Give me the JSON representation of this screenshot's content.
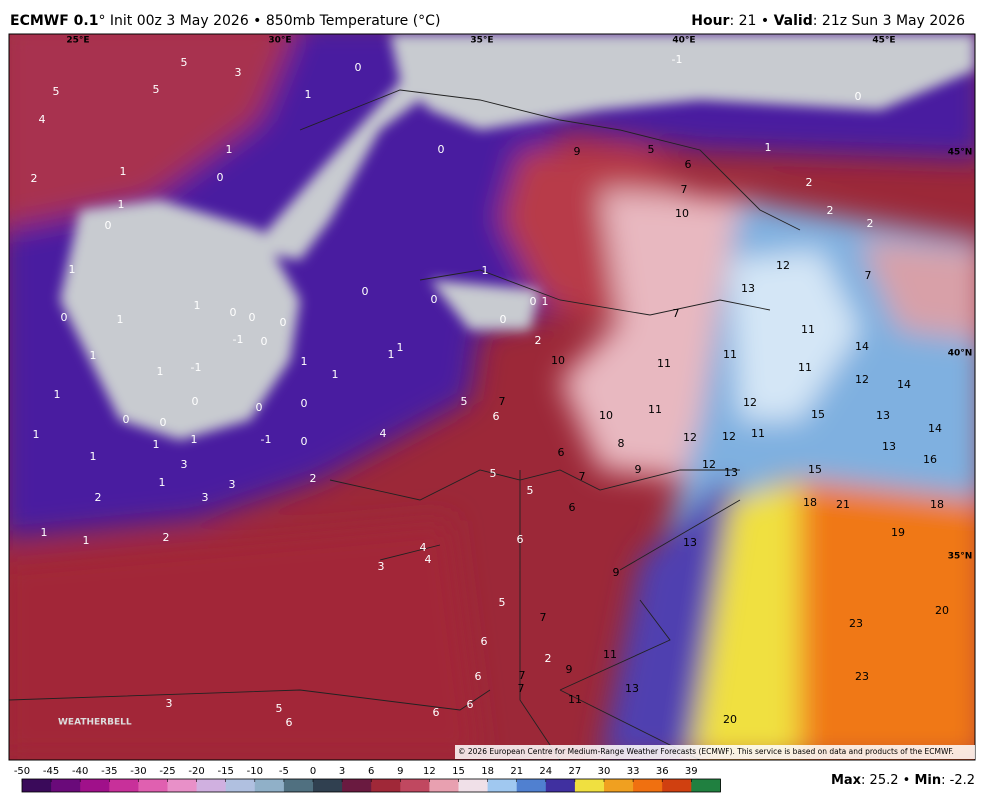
{
  "header": {
    "model": "ECMWF 0.1",
    "description": "° Init 00z 3 May 2026 • 850mb Temperature (°C)",
    "hour_label": "Hour",
    "hour": ": 21",
    "separator": " • ",
    "valid_label": "Valid",
    "valid": ": 21z Sun 3 May 2026"
  },
  "map": {
    "grid_labels": [
      "25°E",
      "30°E",
      "35°E",
      "40°E",
      "45°E",
      "45°N",
      "40°N",
      "35°N"
    ],
    "labels": [
      5,
      3,
      0,
      -1,
      5,
      5,
      1,
      0,
      4,
      9,
      5,
      6,
      1,
      1,
      0,
      2,
      1,
      0,
      7,
      2,
      1,
      10,
      2,
      2,
      0,
      1,
      1,
      12,
      7,
      0,
      0,
      0,
      1,
      13,
      1,
      0,
      1,
      0,
      0,
      0,
      7,
      0,
      -1,
      0,
      11,
      2,
      14,
      1,
      1,
      1,
      11,
      1,
      10,
      11,
      11,
      1,
      -1,
      1,
      12,
      14,
      1,
      0,
      0,
      0,
      5,
      7,
      12,
      11,
      15,
      0,
      0,
      10,
      6,
      13,
      1,
      4,
      1,
      1,
      -1,
      0,
      8,
      12,
      12,
      11,
      14,
      13,
      1,
      3,
      6,
      9,
      12,
      13,
      15,
      16,
      1,
      3,
      2,
      5,
      7,
      2,
      3,
      5,
      18,
      21,
      18,
      6,
      19,
      1,
      1,
      2,
      4,
      4,
      6,
      13,
      3,
      9,
      5,
      20,
      7,
      23,
      6,
      2,
      9,
      11,
      6,
      7,
      23,
      13,
      3,
      5,
      7,
      11,
      6,
      6,
      6,
      20
    ],
    "logo": "WEATHERBELL",
    "copyright": "© 2026 European Centre for Medium-Range Weather Forecasts (ECMWF). This service is based on data and products of the ECMWF."
  },
  "colorbar": {
    "ticks": [
      -50,
      -45,
      -40,
      -35,
      -30,
      -25,
      -20,
      -15,
      -10,
      -5,
      0,
      3,
      6,
      9,
      12,
      15,
      18,
      21,
      24,
      27,
      30,
      33,
      36,
      39
    ],
    "colors": [
      "#3a0a5a",
      "#6a0a7a",
      "#a0108a",
      "#c8309a",
      "#e060b0",
      "#e890c8",
      "#d0b0e0",
      "#b0c0e0",
      "#90b0c8",
      "#507080",
      "#304050",
      "#6a1a40",
      "#a02838",
      "#c04860",
      "#e8a0b0",
      "#f0e0e8",
      "#a0c8f0",
      "#5080d0",
      "#4030a0",
      "#f0e040",
      "#f0a020",
      "#f07010",
      "#d04010",
      "#208040"
    ]
  },
  "stats": {
    "max_label": "Max",
    "max": ": 25.2",
    "separator": " • ",
    "min_label": "Min",
    "min": ": -2.2"
  }
}
